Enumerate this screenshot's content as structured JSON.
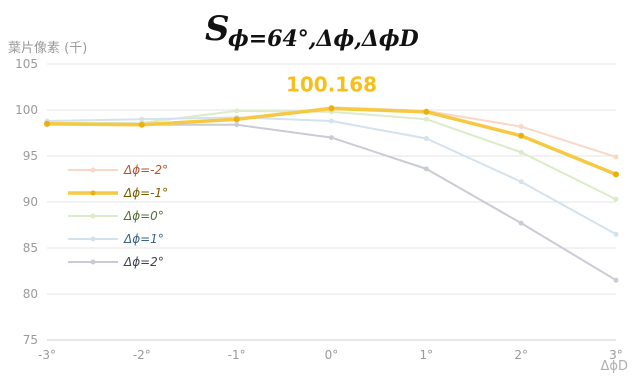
{
  "chart_data": {
    "type": "line",
    "title": "S",
    "title_subscript": "ϕ=64°,Δϕ,ΔϕD",
    "ylabel": "葉片像素 (千)",
    "xlabel": "ΔϕD",
    "categories": [
      "-3°",
      "-2°",
      "-1°",
      "0°",
      "1°",
      "2°",
      "3°"
    ],
    "ylim": [
      75,
      105
    ],
    "yticks": [
      75,
      80,
      85,
      90,
      95,
      100,
      105
    ],
    "grid": true,
    "legend_position": "left",
    "annotation": {
      "text": "100.168",
      "color": "#f6bf1c"
    },
    "series": [
      {
        "name": "Δϕ=-2°",
        "color": "#f8d9c6",
        "label_color": "#b5532a",
        "highlight": false,
        "values": [
          98.4,
          98.4,
          98.9,
          100.3,
          99.9,
          98.2,
          94.9
        ]
      },
      {
        "name": "Δϕ=-1°",
        "color": "#f6c944",
        "label_color": "#7a5a00",
        "highlight": true,
        "values": [
          98.5,
          98.4,
          99.0,
          100.168,
          99.8,
          97.2,
          93.0
        ]
      },
      {
        "name": "Δϕ=0°",
        "color": "#dcebc9",
        "label_color": "#55703a",
        "highlight": false,
        "values": [
          98.6,
          98.6,
          99.9,
          99.8,
          99.0,
          95.4,
          90.3
        ]
      },
      {
        "name": "Δϕ=1°",
        "color": "#d3e2ef",
        "label_color": "#3a6187",
        "highlight": false,
        "values": [
          98.8,
          99.0,
          99.2,
          98.8,
          96.9,
          92.2,
          86.5
        ]
      },
      {
        "name": "Δϕ=2°",
        "color": "#c9ccd4",
        "label_color": "#3f4352",
        "highlight": false,
        "values": [
          98.5,
          98.4,
          98.4,
          97.0,
          93.6,
          87.7,
          81.5
        ]
      }
    ]
  }
}
